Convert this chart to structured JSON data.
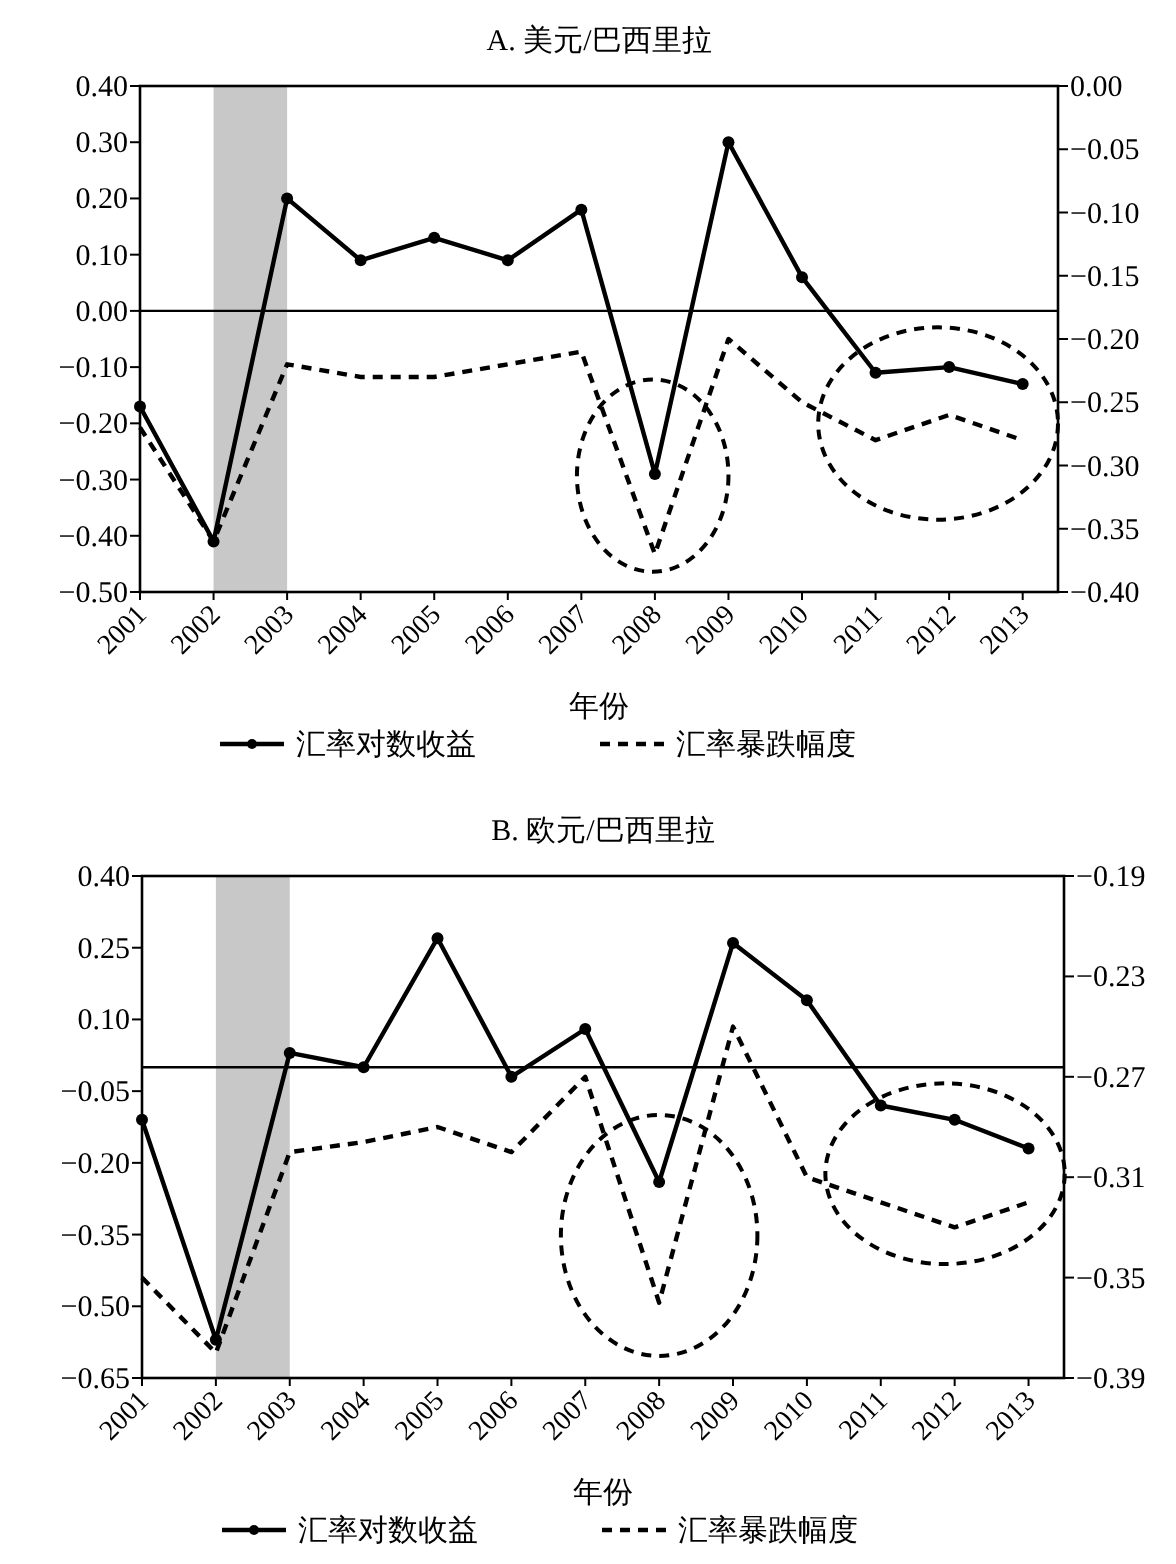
{
  "chart_data": [
    {
      "type": "line",
      "title": "A. 美元/巴西里拉",
      "xlabel": "年份",
      "categories": [
        "2001",
        "2002",
        "2003",
        "2004",
        "2005",
        "2006",
        "2007",
        "2008",
        "2009",
        "2010",
        "2011",
        "2012",
        "2013"
      ],
      "ylim": [
        -0.5,
        0.4
      ],
      "yticks": [
        {
          "value": 0.4,
          "label": "0.40"
        },
        {
          "value": 0.3,
          "label": "0.30"
        },
        {
          "value": 0.2,
          "label": "0.20"
        },
        {
          "value": 0.1,
          "label": "0.10"
        },
        {
          "value": 0,
          "label": "0.00"
        },
        {
          "value": -0.1,
          "label": "−0.10"
        },
        {
          "value": -0.2,
          "label": "−0.20"
        },
        {
          "value": -0.3,
          "label": "−0.30"
        },
        {
          "value": -0.4,
          "label": "−0.40"
        },
        {
          "value": -0.5,
          "label": "−0.50"
        }
      ],
      "y2lim": [
        -0.4,
        0
      ],
      "y2ticks": [
        {
          "value": 0,
          "label": "0.00"
        },
        {
          "value": -0.05,
          "label": "−0.05"
        },
        {
          "value": -0.1,
          "label": "−0.10"
        },
        {
          "value": -0.15,
          "label": "−0.15"
        },
        {
          "value": -0.2,
          "label": "−0.20"
        },
        {
          "value": -0.25,
          "label": "−0.25"
        },
        {
          "value": -0.3,
          "label": "−0.30"
        },
        {
          "value": -0.35,
          "label": "−0.35"
        },
        {
          "value": -0.4,
          "label": "−0.40"
        }
      ],
      "series": [
        {
          "name": "汇率对数收益",
          "color": "#000000",
          "marker": "circle",
          "line_style": "solid",
          "values": [
            -0.17,
            -0.41,
            0.2,
            0.09,
            0.13,
            0.09,
            0.18,
            -0.29,
            0.3,
            0.06,
            -0.11,
            -0.1,
            -0.13
          ]
        },
        {
          "name": "汇率暴跌幅度",
          "color": "#000000",
          "marker": "none",
          "line_style": "dashed",
          "axis": "y2",
          "values": [
            -0.27,
            -0.36,
            -0.22,
            -0.23,
            -0.23,
            -0.22,
            -0.21,
            -0.37,
            -0.2,
            -0.25,
            -0.28,
            -0.26,
            -0.28
          ]
        }
      ],
      "ref_lines": [
        {
          "axis": "y",
          "value": 0,
          "color": "#000000"
        }
      ],
      "bands": [
        {
          "axis": "x",
          "from": "2002",
          "to": "2003",
          "color": "#c8c8c8"
        }
      ],
      "legend": "bottom",
      "grid": false
    },
    {
      "type": "line",
      "title": "B. 欧元/巴西里拉",
      "xlabel": "年份",
      "categories": [
        "2001",
        "2002",
        "2003",
        "2004",
        "2005",
        "2006",
        "2007",
        "2008",
        "2009",
        "2010",
        "2011",
        "2012",
        "2013"
      ],
      "ylim": [
        -0.65,
        0.4
      ],
      "yticks": [
        {
          "value": 0.4,
          "label": "0.40"
        },
        {
          "value": 0.25,
          "label": "0.25"
        },
        {
          "value": 0.1,
          "label": "0.10"
        },
        {
          "value": -0.05,
          "label": "−0.05"
        },
        {
          "value": -0.2,
          "label": "−0.20"
        },
        {
          "value": -0.35,
          "label": "−0.35"
        },
        {
          "value": -0.5,
          "label": "−0.50"
        },
        {
          "value": -0.65,
          "label": "−0.65"
        }
      ],
      "y2lim": [
        -0.39,
        -0.19
      ],
      "y2ticks": [
        {
          "value": -0.19,
          "label": "−0.19"
        },
        {
          "value": -0.23,
          "label": "−0.23"
        },
        {
          "value": -0.27,
          "label": "−0.27"
        },
        {
          "value": -0.31,
          "label": "−0.31"
        },
        {
          "value": -0.35,
          "label": "−0.35"
        },
        {
          "value": -0.39,
          "label": "−0.39"
        }
      ],
      "series": [
        {
          "name": "汇率对数收益",
          "color": "#000000",
          "marker": "circle",
          "line_style": "solid",
          "values": [
            -0.11,
            -0.57,
            0.03,
            0.0,
            0.27,
            -0.02,
            0.08,
            -0.24,
            0.26,
            0.14,
            -0.08,
            -0.11,
            -0.17
          ]
        },
        {
          "name": "汇率暴跌幅度",
          "color": "#000000",
          "marker": "none",
          "line_style": "dashed",
          "axis": "y2",
          "values": [
            -0.35,
            -0.38,
            -0.3,
            -0.296,
            -0.29,
            -0.3,
            -0.27,
            -0.36,
            -0.25,
            -0.31,
            -0.32,
            -0.33,
            -0.32
          ]
        }
      ],
      "ref_lines": [
        {
          "axis": "y",
          "value": 0,
          "color": "#000000"
        }
      ],
      "bands": [
        {
          "axis": "x",
          "from": "2002",
          "to": "2003",
          "color": "#c8c8c8"
        }
      ],
      "legend": "bottom",
      "grid": false
    }
  ]
}
